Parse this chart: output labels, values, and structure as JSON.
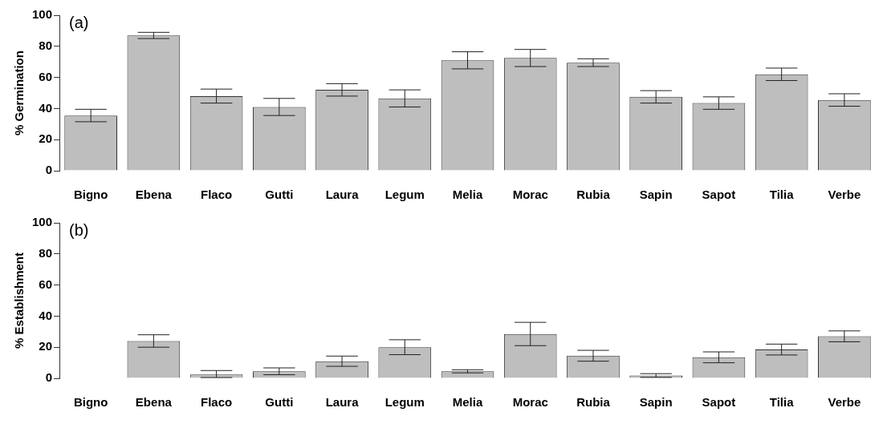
{
  "chart_data": [
    {
      "type": "bar",
      "ylabel": "% Germination",
      "annotations": [
        "(a)"
      ],
      "categories": [
        "Bigno",
        "Ebena",
        "Flaco",
        "Gutti",
        "Laura",
        "Legum",
        "Melia",
        "Morac",
        "Rubia",
        "Sapin",
        "Sapot",
        "Tilia",
        "Verbe"
      ],
      "values": [
        35.5,
        87,
        48,
        41,
        52,
        46.5,
        71,
        72.5,
        69.5,
        47.5,
        43.5,
        62,
        45.5
      ],
      "errors": [
        4,
        2,
        4.5,
        5.5,
        4,
        5.5,
        5.5,
        5.5,
        2.5,
        4,
        4,
        4,
        4
      ],
      "color": "#bebebe",
      "ylim": [
        0,
        100
      ],
      "yticks": [
        0,
        20,
        40,
        60,
        80,
        100
      ]
    },
    {
      "type": "bar",
      "ylabel": "% Establishment",
      "annotations": [
        "(b)"
      ],
      "categories": [
        "Bigno",
        "Ebena",
        "Flaco",
        "Gutti",
        "Laura",
        "Legum",
        "Melia",
        "Morac",
        "Rubia",
        "Sapin",
        "Sapot",
        "Tilia",
        "Verbe"
      ],
      "values": [
        0,
        24,
        2.5,
        4.5,
        11,
        20,
        4.5,
        28.5,
        14.5,
        1.8,
        13.5,
        18.5,
        27
      ],
      "errors": [
        null,
        4,
        [
          0.5,
          5
        ],
        2.2,
        3.3,
        4.8,
        1,
        7.5,
        3.5,
        1.2,
        3.5,
        3.5,
        3.5
      ],
      "color": "#bebebe",
      "ylim": [
        0,
        100
      ],
      "yticks": [
        0,
        20,
        40,
        60,
        80,
        100
      ]
    }
  ]
}
